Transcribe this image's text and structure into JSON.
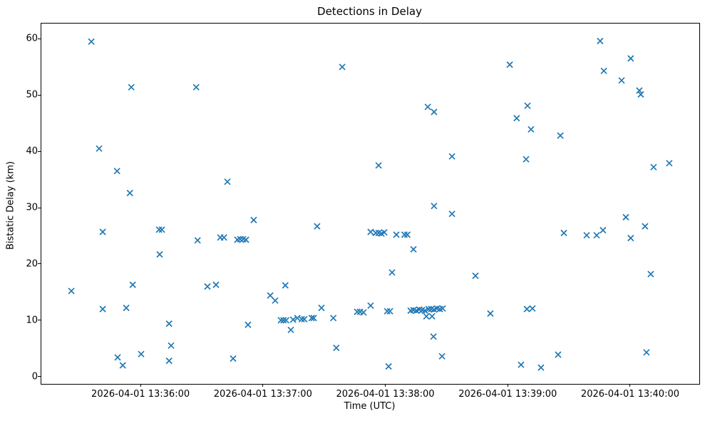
{
  "chart_data": {
    "type": "scatter",
    "title": "Detections in Delay",
    "xlabel": "Time (UTC)",
    "ylabel": "Bistatic Delay (km)",
    "marker": "x",
    "marker_color": "#1f77b4",
    "grid": false,
    "legend": "none",
    "x_unit": "seconds after 2026-04-01 13:35:00 UTC",
    "xlim": [
      11.4,
      333.9
    ],
    "ylim": [
      -1.3,
      62.7
    ],
    "x_ticks": [
      {
        "t": 60,
        "label": "2026-04-01 13:36:00"
      },
      {
        "t": 120,
        "label": "2026-04-01 13:37:00"
      },
      {
        "t": 180,
        "label": "2026-04-01 13:38:00"
      },
      {
        "t": 240,
        "label": "2026-04-01 13:39:00"
      },
      {
        "t": 300,
        "label": "2026-04-01 13:40:00"
      }
    ],
    "y_ticks": [
      0,
      10,
      20,
      30,
      40,
      50,
      60
    ],
    "points": [
      [
        26.1,
        15.2
      ],
      [
        35.9,
        59.5
      ],
      [
        39.7,
        40.5
      ],
      [
        41.5,
        25.7
      ],
      [
        41.5,
        12.0
      ],
      [
        48.5,
        36.5
      ],
      [
        48.8,
        3.4
      ],
      [
        51.3,
        2.0
      ],
      [
        53.0,
        12.2
      ],
      [
        54.8,
        32.6
      ],
      [
        55.5,
        51.4
      ],
      [
        56.2,
        16.3
      ],
      [
        60.3,
        4.0
      ],
      [
        69.1,
        26.1
      ],
      [
        69.4,
        21.7
      ],
      [
        70.5,
        26.1
      ],
      [
        74.0,
        9.4
      ],
      [
        74.0,
        2.8
      ],
      [
        75.0,
        5.5
      ],
      [
        87.3,
        51.4
      ],
      [
        88.0,
        24.2
      ],
      [
        92.8,
        16.0
      ],
      [
        97.0,
        16.3
      ],
      [
        99.1,
        24.7
      ],
      [
        100.9,
        24.7
      ],
      [
        102.6,
        34.6
      ],
      [
        105.4,
        3.2
      ],
      [
        107.5,
        24.3
      ],
      [
        108.9,
        24.4
      ],
      [
        110.3,
        24.4
      ],
      [
        111.7,
        24.3
      ],
      [
        112.7,
        9.2
      ],
      [
        115.5,
        27.8
      ],
      [
        123.6,
        14.4
      ],
      [
        126.0,
        13.5
      ],
      [
        128.8,
        10.0
      ],
      [
        130.1,
        10.0
      ],
      [
        131.0,
        16.2
      ],
      [
        131.4,
        10.0
      ],
      [
        133.7,
        8.3
      ],
      [
        134.8,
        10.1
      ],
      [
        136.9,
        10.4
      ],
      [
        139.0,
        10.2
      ],
      [
        140.3,
        10.2
      ],
      [
        143.9,
        10.4
      ],
      [
        144.9,
        10.4
      ],
      [
        146.6,
        26.7
      ],
      [
        148.7,
        12.2
      ],
      [
        154.5,
        10.4
      ],
      [
        156.0,
        5.1
      ],
      [
        158.9,
        55.0
      ],
      [
        166.2,
        11.5
      ],
      [
        167.6,
        11.5
      ],
      [
        169.3,
        11.4
      ],
      [
        172.8,
        12.6
      ],
      [
        172.8,
        25.7
      ],
      [
        175.3,
        25.5
      ],
      [
        176.7,
        25.5
      ],
      [
        178.1,
        25.4
      ],
      [
        179.5,
        25.6
      ],
      [
        176.7,
        37.5
      ],
      [
        180.9,
        11.6
      ],
      [
        181.6,
        1.8
      ],
      [
        182.3,
        11.6
      ],
      [
        183.3,
        18.5
      ],
      [
        185.4,
        25.2
      ],
      [
        189.4,
        25.2
      ],
      [
        190.8,
        25.2
      ],
      [
        192.4,
        11.7
      ],
      [
        193.8,
        11.8
      ],
      [
        193.8,
        22.6
      ],
      [
        195.2,
        11.7
      ],
      [
        196.6,
        11.9
      ],
      [
        198.0,
        11.8
      ],
      [
        199.4,
        11.7
      ],
      [
        200.1,
        10.7
      ],
      [
        200.8,
        47.9
      ],
      [
        201.2,
        12.0
      ],
      [
        202.5,
        12.0
      ],
      [
        202.9,
        10.7
      ],
      [
        203.6,
        7.1
      ],
      [
        203.9,
        47.0
      ],
      [
        203.9,
        11.9
      ],
      [
        203.9,
        30.3
      ],
      [
        205.3,
        12.1
      ],
      [
        206.7,
        12.0
      ],
      [
        207.8,
        3.6
      ],
      [
        208.1,
        12.1
      ],
      [
        212.7,
        39.1
      ],
      [
        212.7,
        28.9
      ],
      [
        224.2,
        17.9
      ],
      [
        231.5,
        11.2
      ],
      [
        241.0,
        55.4
      ],
      [
        244.4,
        45.9
      ],
      [
        246.5,
        2.1
      ],
      [
        249.0,
        38.6
      ],
      [
        249.4,
        12.0
      ],
      [
        249.7,
        48.1
      ],
      [
        251.4,
        43.9
      ],
      [
        252.1,
        12.1
      ],
      [
        256.3,
        1.6
      ],
      [
        264.7,
        3.9
      ],
      [
        265.8,
        42.8
      ],
      [
        267.5,
        25.5
      ],
      [
        278.7,
        25.1
      ],
      [
        283.6,
        25.1
      ],
      [
        285.3,
        59.6
      ],
      [
        286.7,
        26.0
      ],
      [
        287.1,
        54.3
      ],
      [
        295.8,
        52.6
      ],
      [
        297.9,
        28.3
      ],
      [
        300.3,
        56.5
      ],
      [
        300.3,
        24.6
      ],
      [
        304.5,
        50.8
      ],
      [
        305.2,
        50.1
      ],
      [
        307.3,
        26.7
      ],
      [
        308.0,
        4.3
      ],
      [
        310.1,
        18.2
      ],
      [
        311.5,
        37.2
      ],
      [
        319.2,
        37.9
      ]
    ]
  }
}
